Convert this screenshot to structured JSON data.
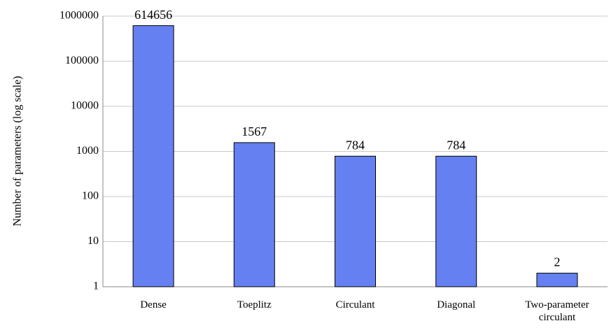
{
  "chart_data": {
    "type": "bar",
    "ylabel": "Number of parameters (log scale)",
    "categories": [
      "Dense",
      "Toeplitz",
      "Circulant",
      "Diagonal",
      "Two-parameter circulant"
    ],
    "values": [
      614656,
      1567,
      784,
      784,
      2
    ],
    "color": "#6580f0",
    "yscale": "log",
    "ylim": [
      1,
      1000000
    ],
    "yticks": [
      1,
      10,
      100,
      1000,
      10000,
      100000,
      1000000
    ],
    "grid": true,
    "show_value_labels": true
  }
}
